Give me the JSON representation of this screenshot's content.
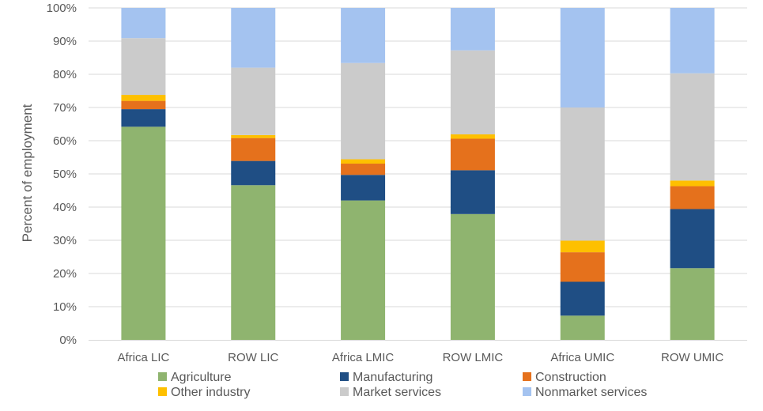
{
  "chart_data": {
    "type": "bar",
    "stacked": true,
    "title": "",
    "xlabel": "",
    "ylabel": "Percent of employment",
    "ylim": [
      0,
      100
    ],
    "ytick_step": 10,
    "ytick_suffix": "%",
    "grid": true,
    "legend_position": "bottom",
    "categories": [
      "Africa LIC",
      "ROW LIC",
      "Africa LMIC",
      "ROW LMIC",
      "Africa UMIC",
      "ROW UMIC"
    ],
    "series": [
      {
        "name": "Agriculture",
        "color": "#8fb46f",
        "values": [
          64.2,
          46.6,
          42.0,
          37.9,
          7.3,
          21.6
        ]
      },
      {
        "name": "Manufacturing",
        "color": "#1f4e84",
        "values": [
          5.3,
          7.3,
          7.7,
          13.2,
          10.2,
          17.8
        ]
      },
      {
        "name": "Construction",
        "color": "#e5711c",
        "values": [
          2.5,
          6.9,
          3.4,
          9.5,
          8.9,
          6.9
        ]
      },
      {
        "name": "Other industry",
        "color": "#fec000",
        "values": [
          1.8,
          0.9,
          1.3,
          1.3,
          3.5,
          1.7
        ]
      },
      {
        "name": "Market services",
        "color": "#cbcbcb",
        "values": [
          17.1,
          20.3,
          29.0,
          25.3,
          40.1,
          32.3
        ]
      },
      {
        "name": "Nonmarket services",
        "color": "#a4c3f0",
        "values": [
          9.1,
          18.0,
          16.6,
          12.8,
          30.0,
          19.7
        ]
      }
    ]
  }
}
